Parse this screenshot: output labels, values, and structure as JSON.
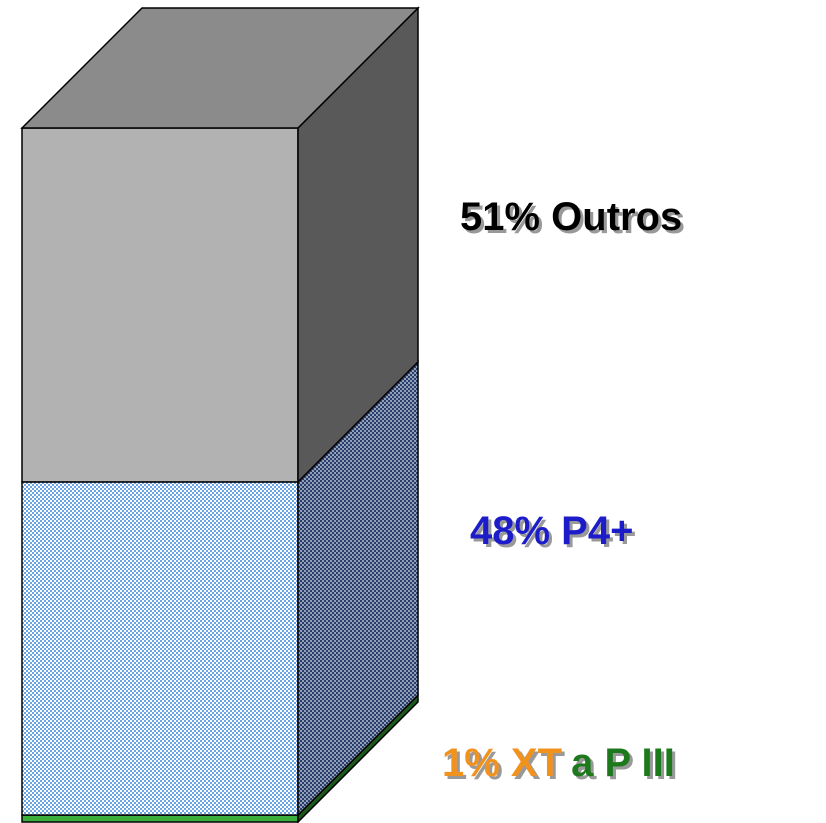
{
  "chart_data": {
    "type": "stacked-bar-3d",
    "series": [
      {
        "values": [
          1
        ],
        "color": "#3aae3a",
        "label": [
          {
            "text": "1% XT",
            "color": "#f0921e"
          },
          {
            "text": "a P III",
            "color": "#1f7a1f"
          }
        ]
      },
      {
        "values": [
          48
        ],
        "color": "#9cc8f0",
        "label": [
          {
            "text": "48% P4+",
            "color": "#1c1cc8"
          }
        ]
      },
      {
        "values": [
          51
        ],
        "color": "#b2b2b2",
        "label": [
          {
            "text": "51% Outros",
            "color": "#000000"
          }
        ]
      }
    ],
    "ylim": [
      0,
      100
    ]
  }
}
